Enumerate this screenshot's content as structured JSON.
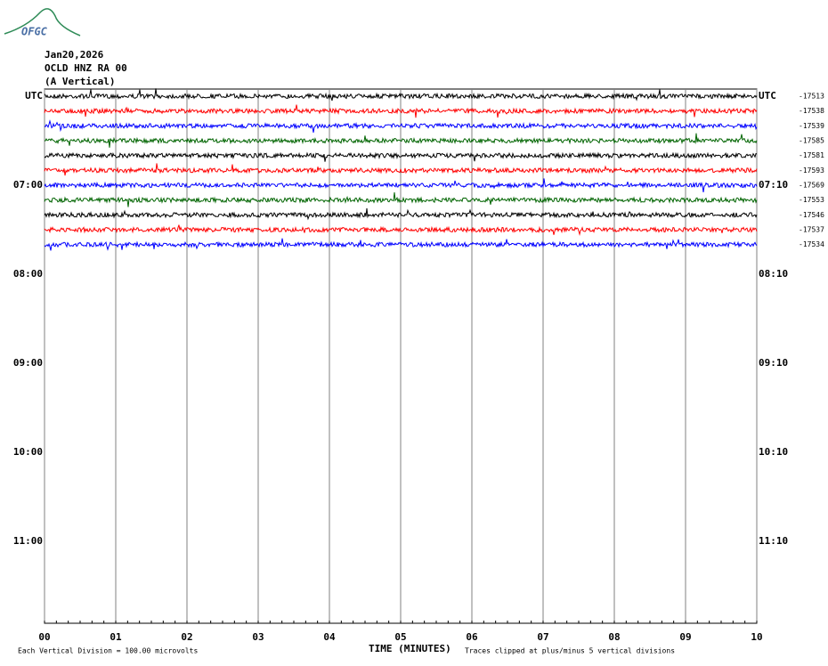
{
  "logo": "OFGC",
  "header": {
    "date": "Jan20,2026",
    "station": "OCLD HNZ RA 00",
    "component": "(A Vertical)"
  },
  "chart_data": {
    "type": "helicorder",
    "xlabel": "TIME (MINUTES)",
    "xlim": [
      0,
      10
    ],
    "xticks": [
      {
        "value": 0,
        "label": "00"
      },
      {
        "value": 1,
        "label": "01"
      },
      {
        "value": 2,
        "label": "02"
      },
      {
        "value": 3,
        "label": "03"
      },
      {
        "value": 4,
        "label": "04"
      },
      {
        "value": 5,
        "label": "05"
      },
      {
        "value": 6,
        "label": "06"
      },
      {
        "value": 7,
        "label": "07"
      },
      {
        "value": 8,
        "label": "08"
      },
      {
        "value": 9,
        "label": "09"
      },
      10
    ],
    "left_labels": [
      "UTC",
      "07:00",
      "08:00",
      "09:00",
      "10:00",
      "11:00"
    ],
    "right_labels": [
      "UTC",
      "07:10",
      "08:10",
      "09:10",
      "10:10",
      "11:10"
    ],
    "traces": [
      {
        "color": "#000000",
        "value": -17513
      },
      {
        "color": "#ff0000",
        "value": -17538
      },
      {
        "color": "#0000ff",
        "value": -17539
      },
      {
        "color": "#006400",
        "value": -17585
      },
      {
        "color": "#000000",
        "value": -17581
      },
      {
        "color": "#ff0000",
        "value": -17593
      },
      {
        "color": "#0000ff",
        "value": -17569
      },
      {
        "color": "#006400",
        "value": -17553
      },
      {
        "color": "#000000",
        "value": -17546
      },
      {
        "color": "#ff0000",
        "value": -17537
      },
      {
        "color": "#0000ff",
        "value": -17534
      }
    ],
    "scale_note": "Each Vertical Division =  100.00 microvolts",
    "clip_note": "Traces clipped at plus/minus 5 vertical divisions"
  }
}
